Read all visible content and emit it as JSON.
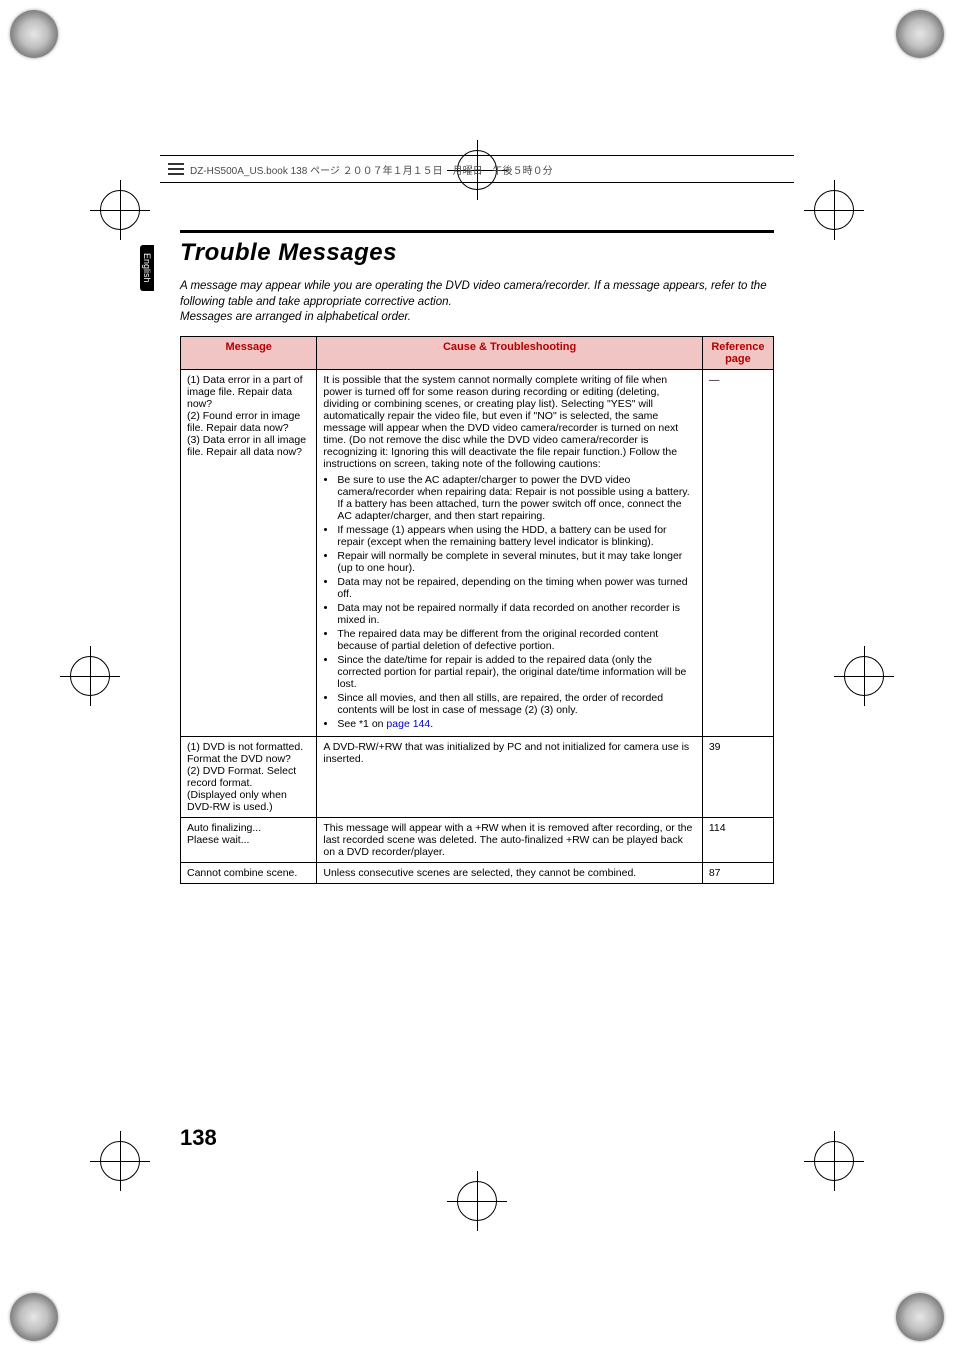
{
  "header": {
    "file_info": "DZ-HS500A_US.book  138 ページ  ２００７年１月１５日　月曜日　午後５時０分"
  },
  "side_tab": {
    "label": "English"
  },
  "title": "Trouble Messages",
  "intro": {
    "line1": "A message may appear while you are operating the DVD video camera/recorder. If a message appears, refer to the following table and take appropriate corrective action.",
    "line2": "Messages are arranged in alphabetical order."
  },
  "table": {
    "headers": {
      "message": "Message",
      "cause": "Cause & Troubleshooting",
      "reference": "Reference page"
    },
    "rows": [
      {
        "message": "(1) Data error in a part of image file. Repair data now?\n(2) Found error in image file. Repair data now?\n(3) Data error in all image file. Repair all data now?",
        "cause_lead": "It is possible that the system cannot normally complete writing of file when power is turned off for some reason during recording or editing (deleting, dividing or combining scenes, or creating play list). Selecting \"YES\" will automatically repair the video file, but even if \"NO\" is selected, the same message will appear when the DVD video camera/recorder is turned on next time. (Do not remove the disc while the DVD video camera/recorder is recognizing it: Ignoring this will deactivate the file repair function.) Follow the instructions on screen, taking note of the following cautions:",
        "cautions": [
          "Be sure to use the AC adapter/charger to power the DVD video camera/recorder when repairing data: Repair is not possible using a battery. If a battery has been attached, turn the power switch off once, connect the AC adapter/charger, and then start repairing.",
          "If message (1) appears when using the HDD, a battery can be used for repair (except when the remaining battery level indicator is blinking).",
          "Repair will normally be complete in several minutes, but it may take longer (up to one hour).",
          "Data may not be repaired, depending on the timing when power was turned off.",
          "Data may not be repaired normally if data recorded on another recorder is mixed in.",
          "The repaired data may be different from the original recorded content because of partial deletion of defective portion.",
          "Since the date/time for repair is added to the repaired data (only the corrected portion for partial repair), the original date/time information will be lost.",
          "Since all movies, and then all stills, are repaired, the order of recorded contents will be lost in case of message (2) (3) only."
        ],
        "see_note": "See *1 on ",
        "see_link": "page 144",
        "see_after": ".",
        "reference": "—"
      },
      {
        "message": "(1) DVD is not formatted. Format the DVD now?\n(2) DVD Format. Select record format.\n(Displayed only when DVD-RW is used.)",
        "cause_lead": "A DVD-RW/+RW that was initialized by PC and not initialized for camera use is inserted.",
        "reference": "39"
      },
      {
        "message": "Auto finalizing...\nPlaese wait...",
        "cause_lead": "This message will appear with a +RW when it is removed after recording, or the last recorded scene was deleted. The auto-finalized +RW can be played back on a DVD recorder/player.",
        "reference": "114"
      },
      {
        "message": "Cannot combine scene.",
        "cause_lead": "Unless consecutive scenes are selected, they cannot be combined.",
        "reference": "87"
      }
    ]
  },
  "page_number": "138"
}
